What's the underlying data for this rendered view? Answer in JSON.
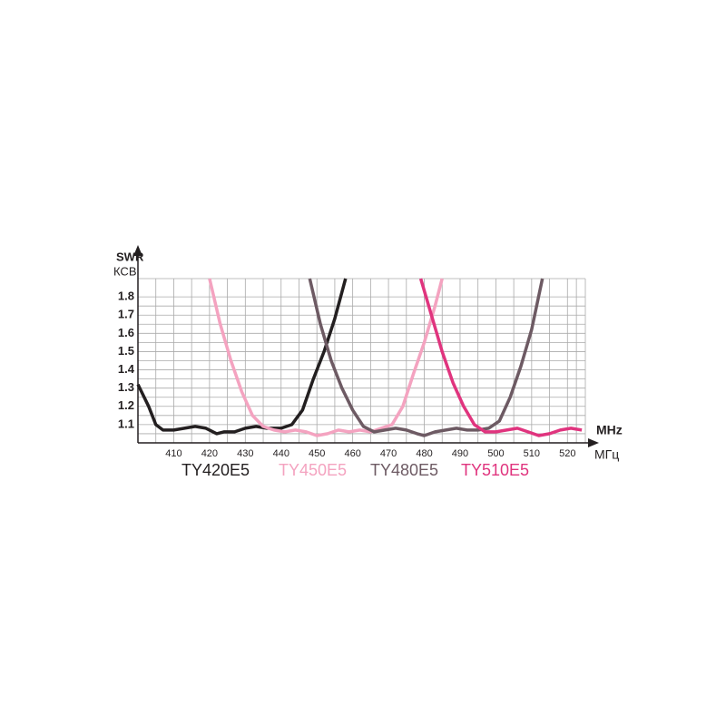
{
  "chart_data": {
    "type": "line",
    "y_label": "SWR",
    "y_label_alt": "КСВ",
    "x_label": "MHz",
    "x_label_alt": "МГц",
    "xlim": [
      400,
      525
    ],
    "xticks": [
      410,
      420,
      430,
      440,
      450,
      460,
      470,
      480,
      490,
      500,
      510,
      520
    ],
    "ylim": [
      1.0,
      1.9
    ],
    "yticks": [
      1.1,
      1.2,
      1.3,
      1.4,
      1.5,
      1.6,
      1.7,
      1.8
    ],
    "grid": true,
    "series": [
      {
        "name": "TY420E5",
        "color": "#231f20",
        "x": [
          400,
          403,
          405,
          407,
          410,
          413,
          416,
          419,
          422,
          424,
          427,
          430,
          433,
          436,
          440,
          443,
          446,
          449,
          452,
          455,
          458
        ],
        "values": [
          1.32,
          1.2,
          1.1,
          1.07,
          1.07,
          1.08,
          1.09,
          1.08,
          1.05,
          1.06,
          1.06,
          1.08,
          1.09,
          1.08,
          1.08,
          1.1,
          1.18,
          1.35,
          1.5,
          1.68,
          1.9
        ]
      },
      {
        "name": "TY450E5",
        "color": "#f4a3c0",
        "x": [
          420,
          423,
          426,
          429,
          432,
          435,
          438,
          441,
          444,
          447,
          450,
          453,
          456,
          459,
          462,
          465,
          468,
          471,
          474,
          477,
          480,
          483,
          485
        ],
        "values": [
          1.9,
          1.65,
          1.45,
          1.28,
          1.15,
          1.09,
          1.07,
          1.06,
          1.07,
          1.06,
          1.04,
          1.05,
          1.07,
          1.06,
          1.07,
          1.06,
          1.08,
          1.1,
          1.2,
          1.38,
          1.55,
          1.75,
          1.9
        ]
      },
      {
        "name": "TY480E5",
        "color": "#6d5a63",
        "x": [
          448,
          451,
          454,
          457,
          460,
          463,
          466,
          469,
          472,
          475,
          478,
          480,
          483,
          486,
          489,
          492,
          495,
          498,
          501,
          504,
          507,
          510,
          513
        ],
        "values": [
          1.9,
          1.65,
          1.45,
          1.3,
          1.18,
          1.09,
          1.06,
          1.07,
          1.08,
          1.07,
          1.05,
          1.04,
          1.06,
          1.07,
          1.08,
          1.07,
          1.07,
          1.08,
          1.12,
          1.25,
          1.42,
          1.62,
          1.9
        ]
      },
      {
        "name": "TY510E5",
        "color": "#e0347e",
        "x": [
          479,
          482,
          485,
          488,
          491,
          494,
          497,
          500,
          503,
          506,
          509,
          512,
          515,
          518,
          521,
          524
        ],
        "values": [
          1.9,
          1.7,
          1.5,
          1.33,
          1.2,
          1.1,
          1.06,
          1.06,
          1.07,
          1.08,
          1.06,
          1.04,
          1.05,
          1.07,
          1.08,
          1.07
        ]
      }
    ]
  }
}
